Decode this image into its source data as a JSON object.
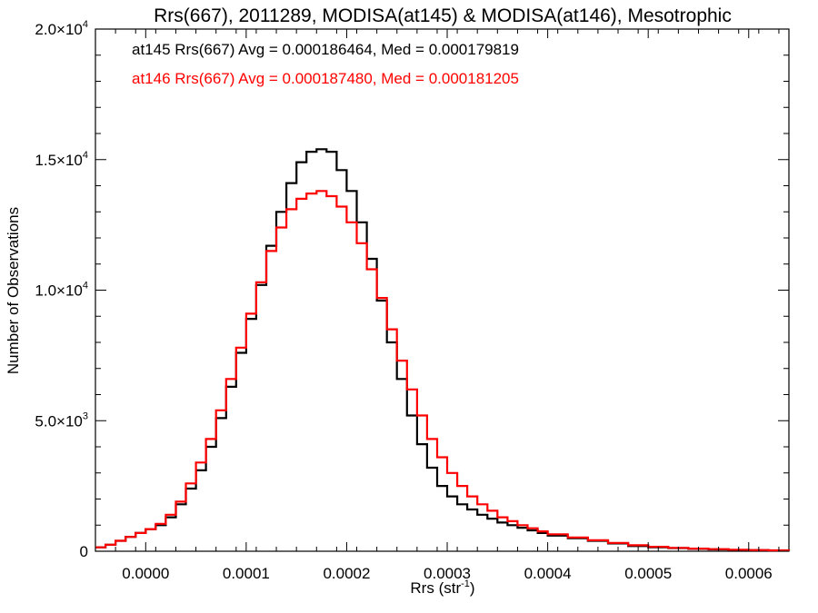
{
  "chart_data": {
    "type": "line",
    "style": "step-histogram",
    "title": "Rrs(667), 2011289, MODISA(at145) & MODISA(at146), Mesotrophic",
    "xlabel_main": "Rrs (str",
    "xlabel_sup": "-1",
    "xlabel_close": ")",
    "ylabel": "Number of Observations",
    "xlim": [
      -5e-05,
      0.00064
    ],
    "ylim": [
      0,
      20000
    ],
    "grid": false,
    "x_ticks": [
      {
        "value": 0.0,
        "label": "0.0000"
      },
      {
        "value": 0.0001,
        "label": "0.0001"
      },
      {
        "value": 0.0002,
        "label": "0.0002"
      },
      {
        "value": 0.0003,
        "label": "0.0003"
      },
      {
        "value": 0.0004,
        "label": "0.0004"
      },
      {
        "value": 0.0005,
        "label": "0.0005"
      },
      {
        "value": 0.0006,
        "label": "0.0006"
      }
    ],
    "y_ticks": [
      {
        "value": 0,
        "base": "0",
        "exp": ""
      },
      {
        "value": 5000,
        "base": "5.0×10",
        "exp": "3"
      },
      {
        "value": 10000,
        "base": "1.0×10",
        "exp": "4"
      },
      {
        "value": 15000,
        "base": "1.5×10",
        "exp": "4"
      },
      {
        "value": 20000,
        "base": "2.0×10",
        "exp": "4"
      }
    ],
    "legend": [
      {
        "text": "at145 Rrs(667) Avg = 0.000186464, Med = 0.000179819",
        "color": "#000000"
      },
      {
        "text": "at146 Rrs(667) Avg = 0.000187480, Med = 0.000181205",
        "color": "#ff0000"
      }
    ],
    "legend_position": "top-left",
    "series": [
      {
        "color": "#000000",
        "x": [
          -5e-05,
          -4e-05,
          -3e-05,
          -2e-05,
          -1e-05,
          0.0,
          1e-05,
          2e-05,
          3e-05,
          4e-05,
          5e-05,
          6e-05,
          7e-05,
          8e-05,
          9e-05,
          0.0001,
          0.00011,
          0.00012,
          0.00013,
          0.00014,
          0.00015,
          0.00016,
          0.00017,
          0.00018,
          0.00019,
          0.0002,
          0.00021,
          0.00022,
          0.00023,
          0.00024,
          0.00025,
          0.00026,
          0.00027,
          0.00028,
          0.00029,
          0.0003,
          0.00031,
          0.00032,
          0.00033,
          0.00034,
          0.00035,
          0.00036,
          0.00037,
          0.00038,
          0.00039,
          0.0004,
          0.00042,
          0.00044,
          0.00046,
          0.00048,
          0.0005,
          0.00052,
          0.00054,
          0.00056,
          0.00058,
          0.0006,
          0.00062,
          0.00064
        ],
        "y": [
          150,
          250,
          400,
          550,
          700,
          850,
          1000,
          1300,
          1800,
          2400,
          3100,
          4000,
          5100,
          6300,
          7600,
          8900,
          10200,
          11700,
          13000,
          14100,
          14900,
          15300,
          15400,
          15300,
          14600,
          13800,
          12600,
          11200,
          9600,
          8000,
          6600,
          5200,
          4100,
          3200,
          2500,
          2100,
          1800,
          1600,
          1400,
          1250,
          1100,
          1000,
          900,
          800,
          700,
          600,
          500,
          400,
          300,
          200,
          150,
          120,
          90,
          70,
          50,
          40,
          30,
          20
        ]
      },
      {
        "color": "#ff0000",
        "x": [
          -5e-05,
          -4e-05,
          -3e-05,
          -2e-05,
          -1e-05,
          0.0,
          1e-05,
          2e-05,
          3e-05,
          4e-05,
          5e-05,
          6e-05,
          7e-05,
          8e-05,
          9e-05,
          0.0001,
          0.00011,
          0.00012,
          0.00013,
          0.00014,
          0.00015,
          0.00016,
          0.00017,
          0.00018,
          0.00019,
          0.0002,
          0.00021,
          0.00022,
          0.00023,
          0.00024,
          0.00025,
          0.00026,
          0.00027,
          0.00028,
          0.00029,
          0.0003,
          0.00031,
          0.00032,
          0.00033,
          0.00034,
          0.00035,
          0.00036,
          0.00037,
          0.00038,
          0.00039,
          0.0004,
          0.00042,
          0.00044,
          0.00046,
          0.00048,
          0.0005,
          0.00052,
          0.00054,
          0.00056,
          0.00058,
          0.0006,
          0.00062,
          0.00064
        ],
        "y": [
          150,
          250,
          400,
          550,
          700,
          850,
          1050,
          1400,
          1900,
          2600,
          3400,
          4300,
          5400,
          6600,
          7800,
          9100,
          10300,
          11500,
          12400,
          13100,
          13500,
          13700,
          13800,
          13600,
          13200,
          12600,
          11800,
          10800,
          9700,
          8500,
          7300,
          6200,
          5200,
          4300,
          3600,
          3000,
          2500,
          2100,
          1800,
          1550,
          1300,
          1150,
          1000,
          880,
          760,
          650,
          530,
          420,
          320,
          230,
          170,
          130,
          100,
          80,
          60,
          45,
          35,
          25
        ]
      }
    ]
  }
}
